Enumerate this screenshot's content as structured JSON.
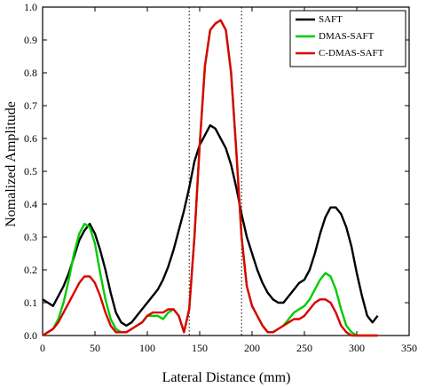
{
  "chart_data": {
    "type": "line",
    "title": "",
    "xlabel": "Lateral Distance (mm)",
    "ylabel": "Nomalized Amplitude",
    "xlim": [
      0,
      350
    ],
    "ylim": [
      0,
      1.0
    ],
    "xticks": [
      0,
      50,
      100,
      150,
      200,
      250,
      300,
      350
    ],
    "yticks": [
      0.0,
      0.1,
      0.2,
      0.3,
      0.4,
      0.5,
      0.6,
      0.7,
      0.8,
      0.9,
      1.0
    ],
    "xtick_labels": [
      "0",
      "50",
      "100",
      "150",
      "200",
      "250",
      "300",
      "350"
    ],
    "ytick_labels": [
      "0.0",
      "0.1",
      "0.2",
      "0.3",
      "0.4",
      "0.5",
      "0.6",
      "0.7",
      "0.8",
      "0.9",
      "1.0"
    ],
    "vlines": [
      140,
      190
    ],
    "legend_position": "top-right",
    "grid": false,
    "series": [
      {
        "name": "SAFT",
        "color": "#000000",
        "x": [
          0,
          5,
          10,
          15,
          20,
          25,
          30,
          35,
          40,
          45,
          50,
          55,
          60,
          65,
          70,
          75,
          80,
          85,
          90,
          95,
          100,
          105,
          110,
          115,
          120,
          125,
          130,
          135,
          140,
          145,
          150,
          155,
          160,
          165,
          170,
          175,
          180,
          185,
          190,
          195,
          200,
          205,
          210,
          215,
          220,
          225,
          230,
          235,
          240,
          245,
          250,
          255,
          260,
          265,
          270,
          275,
          280,
          285,
          290,
          295,
          300,
          305,
          310,
          315,
          320
        ],
        "y": [
          0.11,
          0.1,
          0.09,
          0.12,
          0.15,
          0.19,
          0.24,
          0.29,
          0.32,
          0.34,
          0.31,
          0.26,
          0.2,
          0.13,
          0.07,
          0.04,
          0.03,
          0.04,
          0.06,
          0.08,
          0.1,
          0.12,
          0.14,
          0.17,
          0.21,
          0.26,
          0.32,
          0.38,
          0.45,
          0.53,
          0.58,
          0.61,
          0.64,
          0.63,
          0.6,
          0.57,
          0.52,
          0.45,
          0.37,
          0.3,
          0.25,
          0.2,
          0.16,
          0.13,
          0.11,
          0.1,
          0.1,
          0.12,
          0.14,
          0.16,
          0.17,
          0.2,
          0.25,
          0.31,
          0.36,
          0.39,
          0.39,
          0.37,
          0.33,
          0.27,
          0.19,
          0.12,
          0.06,
          0.04,
          0.06
        ]
      },
      {
        "name": "DMAS-SAFT",
        "color": "#00cc00",
        "x": [
          0,
          5,
          10,
          15,
          20,
          25,
          30,
          35,
          40,
          45,
          50,
          55,
          60,
          65,
          70,
          75,
          80,
          85,
          90,
          95,
          100,
          105,
          110,
          115,
          120,
          125,
          130,
          135,
          140,
          145,
          150,
          155,
          160,
          165,
          170,
          175,
          180,
          185,
          190,
          195,
          200,
          205,
          210,
          215,
          220,
          225,
          230,
          235,
          240,
          245,
          250,
          255,
          260,
          265,
          270,
          275,
          280,
          285,
          290,
          295,
          300,
          305,
          310,
          315,
          320
        ],
        "y": [
          0.0,
          0.01,
          0.02,
          0.05,
          0.1,
          0.17,
          0.25,
          0.31,
          0.34,
          0.33,
          0.28,
          0.19,
          0.11,
          0.05,
          0.02,
          0.01,
          0.01,
          0.02,
          0.03,
          0.04,
          0.06,
          0.06,
          0.06,
          0.05,
          0.07,
          0.08,
          0.06,
          0.01,
          0.08,
          0.3,
          0.58,
          0.82,
          0.93,
          0.95,
          0.96,
          0.93,
          0.8,
          0.56,
          0.3,
          0.15,
          0.09,
          0.06,
          0.03,
          0.01,
          0.01,
          0.02,
          0.03,
          0.05,
          0.07,
          0.08,
          0.09,
          0.11,
          0.14,
          0.17,
          0.19,
          0.18,
          0.14,
          0.08,
          0.03,
          0.01,
          0.0,
          0.0,
          0.0,
          0.0,
          0.0
        ]
      },
      {
        "name": "C-DMAS-SAFT",
        "color": "#dd0000",
        "x": [
          0,
          5,
          10,
          15,
          20,
          25,
          30,
          35,
          40,
          45,
          50,
          55,
          60,
          65,
          70,
          75,
          80,
          85,
          90,
          95,
          100,
          105,
          110,
          115,
          120,
          125,
          130,
          135,
          140,
          145,
          150,
          155,
          160,
          165,
          170,
          175,
          180,
          185,
          190,
          195,
          200,
          205,
          210,
          215,
          220,
          225,
          230,
          235,
          240,
          245,
          250,
          255,
          260,
          265,
          270,
          275,
          280,
          285,
          290,
          295,
          300,
          305,
          310,
          315,
          320
        ],
        "y": [
          0.0,
          0.01,
          0.02,
          0.04,
          0.07,
          0.1,
          0.13,
          0.16,
          0.18,
          0.18,
          0.16,
          0.12,
          0.07,
          0.03,
          0.01,
          0.01,
          0.01,
          0.02,
          0.03,
          0.04,
          0.06,
          0.07,
          0.07,
          0.07,
          0.08,
          0.08,
          0.06,
          0.01,
          0.08,
          0.3,
          0.58,
          0.82,
          0.93,
          0.95,
          0.96,
          0.93,
          0.8,
          0.56,
          0.3,
          0.15,
          0.09,
          0.06,
          0.03,
          0.01,
          0.01,
          0.02,
          0.03,
          0.04,
          0.05,
          0.05,
          0.06,
          0.08,
          0.1,
          0.11,
          0.11,
          0.1,
          0.07,
          0.03,
          0.01,
          0.0,
          0.0,
          0.0,
          0.0,
          0.0,
          0.0
        ]
      }
    ]
  }
}
